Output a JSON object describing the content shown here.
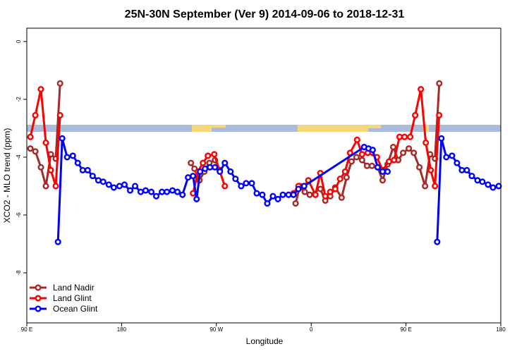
{
  "chart_data": {
    "type": "line",
    "title": "25N-30N September (Ver 9)   2014-09-06 to 2018-12-31",
    "x_label": "Longitude",
    "y_label": "XCO2 - MLO trend (ppm)",
    "xlim": [
      90,
      540
    ],
    "ylim": [
      -9.73,
      0.46
    ],
    "xticks": [
      {
        "value": 90,
        "label": "90 E"
      },
      180,
      {
        "value": 270,
        "label": "90 W"
      },
      {
        "value": 360,
        "label": "0"
      },
      {
        "value": 450,
        "label": "90 E"
      },
      {
        "value": 540,
        "label": "180"
      }
    ],
    "yticks": [
      0,
      -2,
      -4,
      -6,
      -8
    ],
    "legend": "bottom-left",
    "series": [
      {
        "name": "Land Nadir",
        "color": "#a52a2a",
        "x": [
          93.4,
          98.1,
          103.4,
          108.1,
          112.8,
          117.5,
          121.6,
          180,
          245.8,
          249.2,
          253.9,
          258.6,
          263.3,
          268.6,
          273.3,
          310,
          345.2,
          349.2,
          353.9,
          358.6,
          368.7,
          373.4,
          378.1,
          382.8,
          388.9,
          393.6,
          398.3,
          403,
          408.3,
          413,
          417.7,
          423.1,
          427.8,
          432.5,
          437.9,
          442.6,
          447.3,
          452.7,
          457.4,
          462.7,
          468.1,
          472.8,
          477.5,
          481.6
        ],
        "values": [
          -3.7,
          -3.8,
          -4.35,
          -5.0,
          -3.9,
          -4.05,
          -1.45,
          null,
          -4.2,
          -4.4,
          -4.8,
          -4.5,
          -4.2,
          -4.1,
          -4.45,
          null,
          -5.6,
          -5.0,
          -5.2,
          -5.3,
          -5.1,
          -5.5,
          -5.35,
          -5.05,
          -5.4,
          -4.7,
          -4.15,
          -4.0,
          -4.1,
          -4.3,
          -4.3,
          -4.35,
          -4.8,
          -4.25,
          -3.65,
          -4.1,
          -3.85,
          -3.7,
          -3.85,
          -4.35,
          -5.0,
          -3.9,
          -4.05,
          -1.45
        ]
      },
      {
        "name": "Land Glint",
        "color": "#ff0000",
        "x": [
          93.4,
          98.1,
          103.4,
          108.1,
          112.8,
          117.5,
          121.6,
          180,
          247.8,
          252.5,
          257.2,
          261.9,
          268,
          273.3,
          278,
          310,
          343.2,
          347.9,
          352.6,
          357.3,
          364,
          368.7,
          373.4,
          378.1,
          382.8,
          387.5,
          392.2,
          396.9,
          403.6,
          408.3,
          413.7,
          422.4,
          427.8,
          433.9,
          438.6,
          443.9,
          448.6,
          454,
          458.7,
          464.1,
          468.8,
          473.5,
          477.5,
          481.5
        ],
        "values": [
          -3.3,
          -2.55,
          -1.65,
          -3.5,
          -4.45,
          -5.0,
          -2.55,
          null,
          -5.25,
          -4.5,
          -4.2,
          -3.95,
          -3.9,
          -4.5,
          -5.0,
          null,
          -5.25,
          -5.0,
          -5.05,
          -4.8,
          -5.3,
          -4.55,
          -5.35,
          -5.2,
          -5.1,
          -4.75,
          -4.5,
          -3.85,
          -3.4,
          -3.9,
          -3.85,
          -4.0,
          -4.45,
          -4.15,
          -4.1,
          -3.3,
          -3.3,
          -3.3,
          -2.55,
          -1.65,
          -3.5,
          -4.45,
          -5.0,
          -2.55
        ]
      },
      {
        "name": "Ocean Glint",
        "color": "#0000ff",
        "x": [
          119.6,
          123.6,
          128.3,
          133.7,
          138.4,
          143.1,
          147.8,
          152.5,
          157.9,
          162.5,
          167.9,
          172.6,
          178,
          182.7,
          188.1,
          192.8,
          198.1,
          202.8,
          208.2,
          212.9,
          218.3,
          223,
          228.3,
          233,
          237.8,
          243.1,
          247.8,
          251.2,
          254.5,
          259.2,
          263.9,
          268.6,
          273.3,
          278,
          283.4,
          288.1,
          293.5,
          298.2,
          303.6,
          308.3,
          313.6,
          318.3,
          323.7,
          328.4,
          333.1,
          338.5,
          343.2,
          347.9,
          353.3,
          410.3,
          414.4,
          418.4,
          423.1,
          427.8,
          432.5,
          455,
          479.6,
          483.6,
          488.3,
          493.7,
          498.4,
          503.1,
          507.8,
          512.5,
          517.9,
          522.5,
          527.9,
          532.6,
          538
        ],
        "values": [
          -6.93,
          -3.35,
          -4.0,
          -3.95,
          -4.2,
          -4.45,
          -4.45,
          -4.65,
          -4.8,
          -4.85,
          -4.95,
          -5.05,
          -5.0,
          -4.95,
          -5.15,
          -5.0,
          -5.2,
          -5.15,
          -5.2,
          -5.35,
          -5.2,
          -5.2,
          -5.15,
          -5.2,
          -5.3,
          -4.7,
          -4.65,
          -5.45,
          -4.5,
          -4.4,
          -4.35,
          -4.35,
          -4.5,
          -4.2,
          -4.5,
          -4.75,
          -5.0,
          -4.9,
          -4.9,
          -5.25,
          -5.3,
          -5.6,
          -5.35,
          -5.45,
          -5.3,
          -5.3,
          -5.3,
          -5.1,
          -5.0,
          -3.65,
          -3.7,
          -3.75,
          -4.35,
          -4.5,
          -4.5,
          null,
          -6.93,
          -3.35,
          -4.0,
          -3.95,
          -4.2,
          -4.45,
          -4.45,
          -4.65,
          -4.8,
          -4.85,
          -4.95,
          -5.05,
          -5.0
        ]
      }
    ]
  }
}
